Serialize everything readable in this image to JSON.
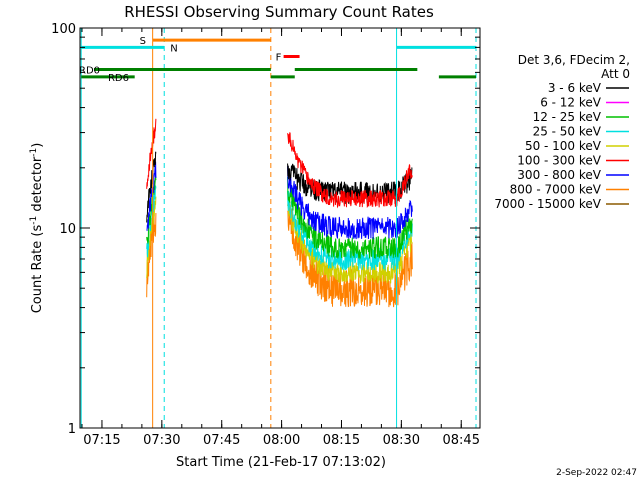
{
  "chart_data": {
    "type": "line",
    "title": "RHESSI Observing Summary Count Rates",
    "xlabel": "Start Time (21-Feb-17 07:13:02)",
    "ylabel_main": "Count Rate (s",
    "ylabel_sup1": "-1",
    "ylabel_mid": " detector",
    "ylabel_sup2": "-1",
    "ylabel_end": ")",
    "footer": "2-Sep-2022 02:47",
    "y_scale": "log",
    "ylim": [
      1,
      100
    ],
    "xlim_minutes": [
      -3.5,
      96.7
    ],
    "x_axis_zero_label": "07:13:02",
    "x_ticks": [
      {
        "minute": 2,
        "label": "07:15"
      },
      {
        "minute": 17,
        "label": "07:30"
      },
      {
        "minute": 32,
        "label": "07:45"
      },
      {
        "minute": 47,
        "label": "08:00"
      },
      {
        "minute": 62,
        "label": "08:15"
      },
      {
        "minute": 77,
        "label": "08:30"
      },
      {
        "minute": 92,
        "label": "08:45"
      }
    ],
    "y_ticks": [
      {
        "value": 1,
        "label": "1"
      },
      {
        "value": 10,
        "label": "10"
      },
      {
        "value": 100,
        "label": "100"
      }
    ],
    "legend_header": [
      "Det 3,6, FDecim 2,",
      "Att 0"
    ],
    "legend_position": "right",
    "series": [
      {
        "name": "3 - 6 keV",
        "color": "#000000"
      },
      {
        "name": "6 - 12 keV",
        "color": "#ff00ff"
      },
      {
        "name": "12 - 25 keV",
        "color": "#00c000"
      },
      {
        "name": "25 - 50 keV",
        "color": "#00e0e0"
      },
      {
        "name": "50 - 100 keV",
        "color": "#d0d000"
      },
      {
        "name": "100 - 300 keV",
        "color": "#ff0000"
      },
      {
        "name": "300 - 800 keV",
        "color": "#0000ff"
      },
      {
        "name": "800 - 7000 keV",
        "color": "#ff8000"
      },
      {
        "name": "7000 - 15000 keV",
        "color": "#8b5a00"
      }
    ],
    "approx_levels": [
      {
        "series": "100 - 300 keV",
        "segment_a_peak": 34,
        "segment_b_start": 30,
        "segment_b_plateau": 14,
        "segment_b_end": 20
      },
      {
        "series": "3 - 6 keV",
        "segment_a_peak": 24,
        "segment_b_start": 20,
        "segment_b_plateau": 15,
        "segment_b_end": 18
      },
      {
        "series": "300 - 800 keV",
        "segment_a_peak": 20,
        "segment_b_start": 18,
        "segment_b_plateau": 10,
        "segment_b_end": 13
      },
      {
        "series": "12 - 25 keV",
        "segment_a_peak": 18,
        "segment_b_start": 16,
        "segment_b_plateau": 8,
        "segment_b_end": 11
      },
      {
        "series": "25 - 50 keV",
        "segment_a_peak": 16,
        "segment_b_start": 14,
        "segment_b_plateau": 7,
        "segment_b_end": 10
      },
      {
        "series": "50 - 100 keV",
        "segment_a_peak": 14,
        "segment_b_start": 13,
        "segment_b_plateau": 6,
        "segment_b_end": 9
      },
      {
        "series": "800 - 7000 keV",
        "segment_a_peak": 12,
        "segment_b_start": 12,
        "segment_b_plateau": 5,
        "segment_b_end": 7
      }
    ],
    "data_segments_minutes": [
      [
        13.2,
        15.6
      ],
      [
        48.5,
        79.8
      ]
    ],
    "vlines": [
      {
        "minute": -3.2,
        "color": "#00e0e0",
        "style": "solid"
      },
      {
        "minute": 14.7,
        "color": "#ff8000",
        "style": "solid"
      },
      {
        "minute": 17.6,
        "color": "#00e0e0",
        "style": "dashed"
      },
      {
        "minute": 44.3,
        "color": "#ff8000",
        "style": "dashed"
      },
      {
        "minute": 75.8,
        "color": "#00e0e0",
        "style": "solid"
      },
      {
        "minute": 95.7,
        "color": "#00e0e0",
        "style": "dashed"
      }
    ],
    "flag_bars": [
      {
        "label": "S",
        "color": "#ff8000",
        "y_value": 87,
        "start": 14.7,
        "end": 44.3
      },
      {
        "label": "N",
        "color": "#00e0e0",
        "y_value": 80,
        "start": -3.2,
        "end": 17.6
      },
      {
        "label": "",
        "color": "#00e0e0",
        "y_value": 80,
        "start": 75.8,
        "end": 95.7
      },
      {
        "label": "F",
        "color": "#ff0000",
        "y_value": 72,
        "start": 47.5,
        "end": 51.5
      },
      {
        "label": "RD0",
        "color": "#008000",
        "y_value": 62,
        "start": 0.0,
        "end": 44.3
      },
      {
        "label": "",
        "color": "#008000",
        "y_value": 62,
        "start": 50.3,
        "end": 81.0
      },
      {
        "label": "RD6",
        "color": "#008000",
        "y_value": 57,
        "start": -3.2,
        "end": 10.2
      },
      {
        "label": "",
        "color": "#008000",
        "y_value": 57,
        "start": 44.3,
        "end": 50.3
      },
      {
        "label": "",
        "color": "#008000",
        "y_value": 57,
        "start": 86.4,
        "end": 95.7
      }
    ]
  }
}
